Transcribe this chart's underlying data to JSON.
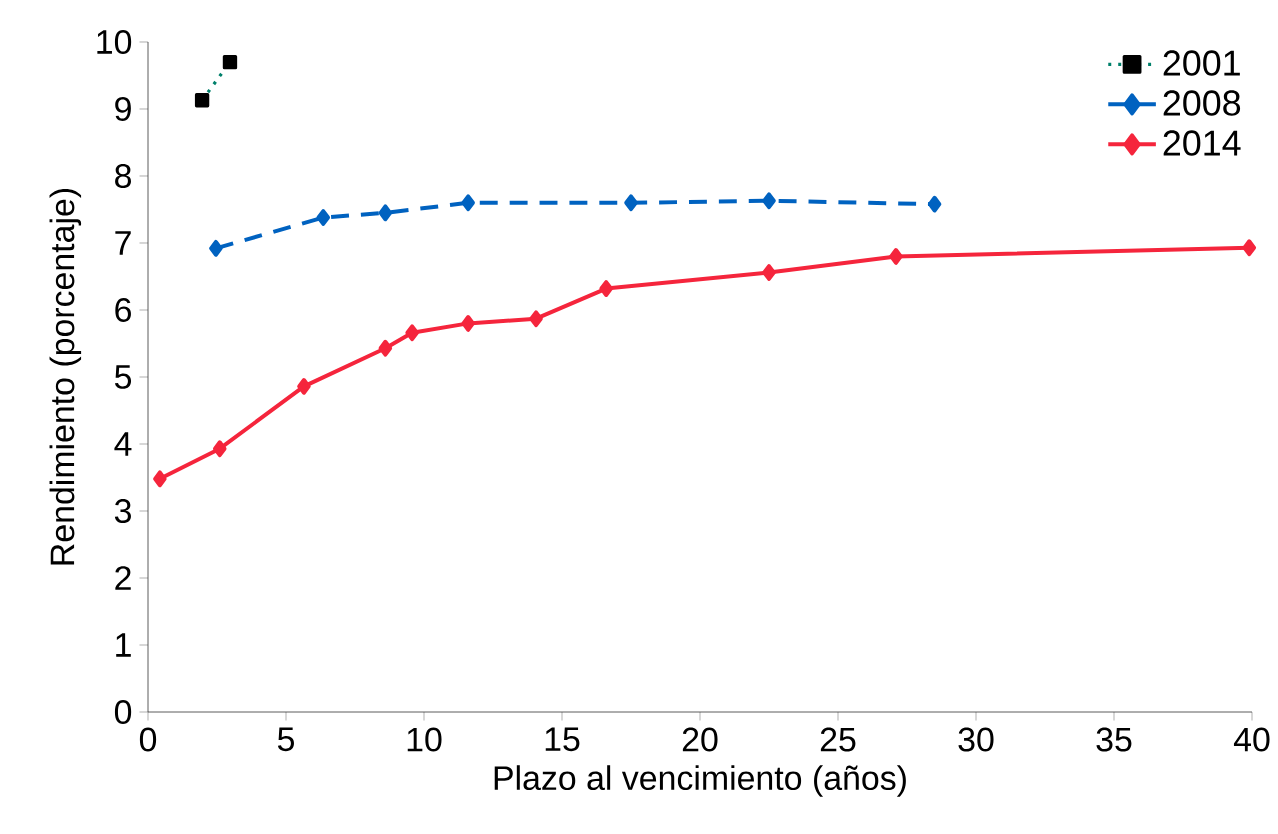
{
  "chart_data": {
    "type": "line",
    "xlabel": "Plazo al vencimiento (años)",
    "ylabel": "Rendimiento (porcentaje)",
    "xlim": [
      0,
      40
    ],
    "ylim": [
      0,
      10
    ],
    "xticks": [
      0,
      5,
      10,
      15,
      20,
      25,
      30,
      35,
      40
    ],
    "yticks": [
      0,
      1,
      2,
      3,
      4,
      5,
      6,
      7,
      8,
      9,
      10
    ],
    "grid": false,
    "legend": "top right",
    "series": [
      {
        "name": "2001",
        "color": "#00806b",
        "line_style": "dotted",
        "marker": "square",
        "x": [
          1.96,
          2.97
        ],
        "values": [
          9.13,
          9.7
        ]
      },
      {
        "name": "2008",
        "color": "#0062c0",
        "line_style": "dashed",
        "marker": "diamond",
        "x": [
          2.46,
          6.35,
          8.6,
          11.6,
          17.5,
          22.5,
          28.5
        ],
        "values": [
          6.92,
          7.38,
          7.45,
          7.6,
          7.6,
          7.63,
          7.58
        ]
      },
      {
        "name": "2014",
        "color": "#f5253c",
        "line_style": "solid",
        "marker": "diamond",
        "x": [
          0.43,
          2.6,
          5.65,
          8.6,
          9.57,
          11.6,
          14.06,
          16.6,
          22.5,
          27.1,
          39.9
        ],
        "values": [
          3.48,
          3.93,
          4.86,
          5.43,
          5.66,
          5.8,
          5.87,
          6.32,
          6.56,
          6.8,
          6.93
        ]
      }
    ]
  }
}
